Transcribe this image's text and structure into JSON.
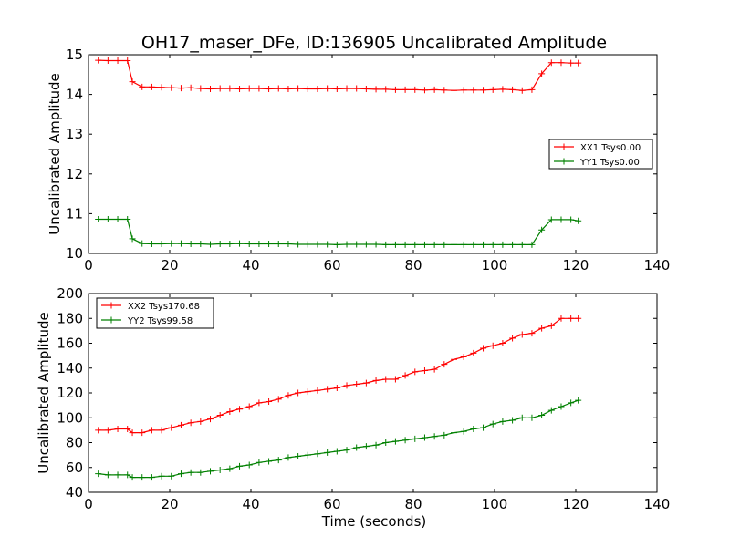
{
  "title": "OH17_maser_DFe, ID:136905 Uncalibrated Amplitude",
  "chart_data": [
    {
      "type": "line",
      "title": "OH17_maser_DFe, ID:136905 Uncalibrated Amplitude",
      "xlabel": "",
      "ylabel": "Uncalibrated Amplitude",
      "xlim": [
        0,
        140
      ],
      "ylim": [
        10,
        15
      ],
      "xticks": [
        "0",
        "20",
        "40",
        "60",
        "80",
        "100",
        "120",
        "140"
      ],
      "yticks": [
        "10",
        "11",
        "12",
        "13",
        "14",
        "15"
      ],
      "legend_position": "center-right",
      "grid": false,
      "series": [
        {
          "name": "XX1 Tsys0.00",
          "color": "#ff0000",
          "x": [
            2.4,
            4.8,
            7.2,
            9.6,
            10.8,
            13.2,
            15.6,
            18,
            20.4,
            22.8,
            25.2,
            27.6,
            30,
            32.4,
            34.8,
            37.2,
            39.6,
            42,
            44.4,
            46.8,
            49.2,
            51.6,
            54,
            56.4,
            58.8,
            61.2,
            63.6,
            66,
            68.4,
            70.8,
            73.2,
            75.6,
            78,
            80.4,
            82.8,
            85.2,
            87.6,
            90,
            92.4,
            94.8,
            97.2,
            99.6,
            102,
            104.4,
            106.8,
            109.2,
            111.6,
            114,
            116.4,
            118.8,
            120.6
          ],
          "values": [
            14.86,
            14.85,
            14.85,
            14.85,
            14.32,
            14.19,
            14.19,
            14.18,
            14.17,
            14.16,
            14.17,
            14.15,
            14.14,
            14.15,
            14.15,
            14.14,
            14.15,
            14.15,
            14.14,
            14.15,
            14.14,
            14.15,
            14.14,
            14.14,
            14.15,
            14.14,
            14.15,
            14.15,
            14.14,
            14.13,
            14.13,
            14.12,
            14.12,
            14.12,
            14.11,
            14.12,
            14.11,
            14.1,
            14.11,
            14.11,
            14.11,
            14.12,
            14.13,
            14.12,
            14.1,
            14.12,
            14.52,
            14.8,
            14.8,
            14.79,
            14.79
          ]
        },
        {
          "name": "YY1 Tsys0.00",
          "color": "#008000",
          "x": [
            2.4,
            4.8,
            7.2,
            9.6,
            10.8,
            13.2,
            15.6,
            18,
            20.4,
            22.8,
            25.2,
            27.6,
            30,
            32.4,
            34.8,
            37.2,
            39.6,
            42,
            44.4,
            46.8,
            49.2,
            51.6,
            54,
            56.4,
            58.8,
            61.2,
            63.6,
            66,
            68.4,
            70.8,
            73.2,
            75.6,
            78,
            80.4,
            82.8,
            85.2,
            87.6,
            90,
            92.4,
            94.8,
            97.2,
            99.6,
            102,
            104.4,
            106.8,
            109.2,
            111.6,
            114,
            116.4,
            118.8,
            120.6
          ],
          "values": [
            10.86,
            10.86,
            10.86,
            10.86,
            10.37,
            10.25,
            10.24,
            10.24,
            10.25,
            10.25,
            10.24,
            10.24,
            10.23,
            10.24,
            10.24,
            10.25,
            10.24,
            10.24,
            10.24,
            10.24,
            10.24,
            10.23,
            10.23,
            10.23,
            10.23,
            10.22,
            10.23,
            10.23,
            10.23,
            10.23,
            10.22,
            10.22,
            10.22,
            10.22,
            10.22,
            10.22,
            10.22,
            10.22,
            10.22,
            10.22,
            10.22,
            10.22,
            10.22,
            10.22,
            10.22,
            10.22,
            10.59,
            10.85,
            10.85,
            10.85,
            10.82
          ]
        }
      ]
    },
    {
      "type": "line",
      "title": "",
      "xlabel": "Time (seconds)",
      "ylabel": "Uncalibrated Amplitude",
      "xlim": [
        0,
        140
      ],
      "ylim": [
        40,
        200
      ],
      "xticks": [
        "0",
        "20",
        "40",
        "60",
        "80",
        "100",
        "120",
        "140"
      ],
      "yticks": [
        "40",
        "60",
        "80",
        "100",
        "120",
        "140",
        "160",
        "180",
        "200"
      ],
      "legend_position": "upper-left",
      "grid": false,
      "series": [
        {
          "name": "XX2 Tsys170.68",
          "color": "#ff0000",
          "x": [
            2.4,
            4.8,
            7.2,
            9.6,
            10.8,
            13.2,
            15.6,
            18,
            20.4,
            22.8,
            25.2,
            27.6,
            30,
            32.4,
            34.8,
            37.2,
            39.6,
            42,
            44.4,
            46.8,
            49.2,
            51.6,
            54,
            56.4,
            58.8,
            61.2,
            63.6,
            66,
            68.4,
            70.8,
            73.2,
            75.6,
            78,
            80.4,
            82.8,
            85.2,
            87.6,
            90,
            92.4,
            94.8,
            97.2,
            99.6,
            102,
            104.4,
            106.8,
            109.2,
            111.6,
            114,
            116.4,
            118.8,
            120.6
          ],
          "values": [
            90,
            90,
            91,
            91,
            88,
            88,
            90,
            90,
            92,
            94,
            96,
            97,
            99,
            102,
            105,
            107,
            109,
            112,
            113,
            115,
            118,
            120,
            121,
            122,
            123,
            124,
            126,
            127,
            128,
            130,
            131,
            131,
            134,
            137,
            138,
            139,
            143,
            147,
            149,
            152,
            156,
            158,
            160,
            164,
            167,
            168,
            172,
            174,
            180,
            180,
            180
          ]
        },
        {
          "name": "YY2 Tsys99.58",
          "color": "#008000",
          "x": [
            2.4,
            4.8,
            7.2,
            9.6,
            10.8,
            13.2,
            15.6,
            18,
            20.4,
            22.8,
            25.2,
            27.6,
            30,
            32.4,
            34.8,
            37.2,
            39.6,
            42,
            44.4,
            46.8,
            49.2,
            51.6,
            54,
            56.4,
            58.8,
            61.2,
            63.6,
            66,
            68.4,
            70.8,
            73.2,
            75.6,
            78,
            80.4,
            82.8,
            85.2,
            87.6,
            90,
            92.4,
            94.8,
            97.2,
            99.6,
            102,
            104.4,
            106.8,
            109.2,
            111.6,
            114,
            116.4,
            118.8,
            120.6
          ],
          "values": [
            55,
            54,
            54,
            54,
            52,
            52,
            52,
            53,
            53,
            55,
            56,
            56,
            57,
            58,
            59,
            61,
            62,
            64,
            65,
            66,
            68,
            69,
            70,
            71,
            72,
            73,
            74,
            76,
            77,
            78,
            80,
            81,
            82,
            83,
            84,
            85,
            86,
            88,
            89,
            91,
            92,
            95,
            97,
            98,
            100,
            100,
            102,
            106,
            109,
            112,
            114
          ]
        }
      ]
    }
  ]
}
